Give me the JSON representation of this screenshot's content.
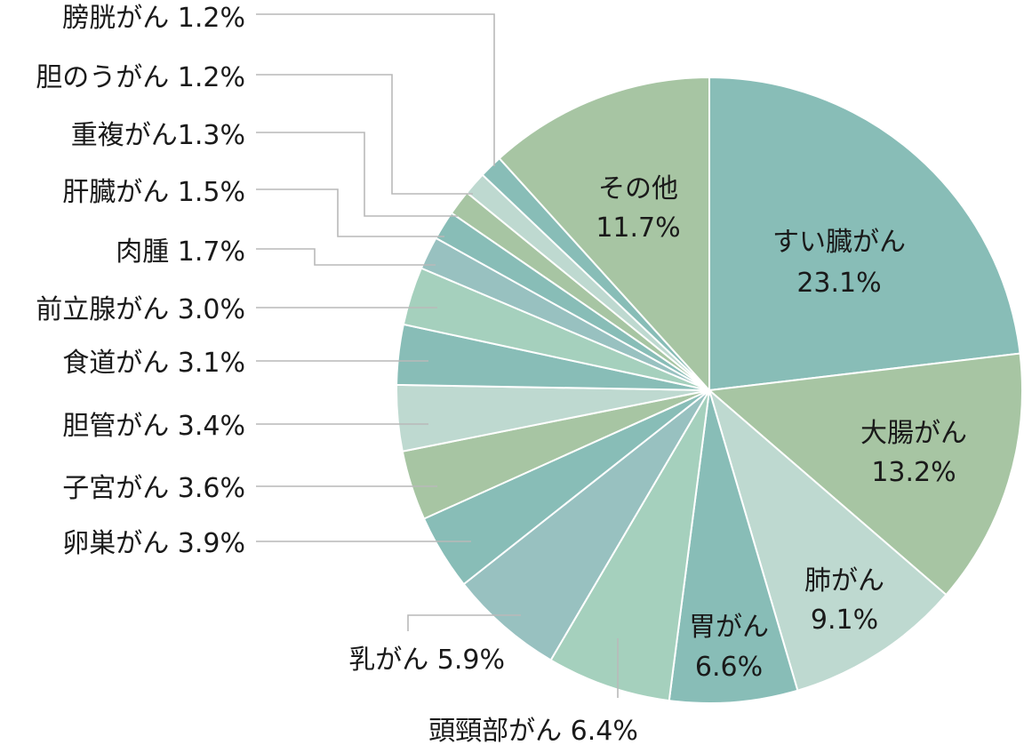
{
  "chart_data": {
    "type": "pie",
    "start": "12 o'clock",
    "direction": "clockwise",
    "slices": [
      {
        "label": "すい臓がん",
        "value": 23.1,
        "value_text": "23.1%",
        "color": "#88bdb7"
      },
      {
        "label": "大腸がん",
        "value": 13.2,
        "value_text": "13.2%",
        "color": "#a7c5a3"
      },
      {
        "label": "肺がん",
        "value": 9.1,
        "value_text": "9.1%",
        "color": "#bed9d0"
      },
      {
        "label": "胃がん",
        "value": 6.6,
        "value_text": "6.6%",
        "color": "#88bdb7"
      },
      {
        "label": "頭頸部がん",
        "value": 6.4,
        "value_text": "6.4%",
        "color": "#a5d0bd"
      },
      {
        "label": "乳がん",
        "value": 5.9,
        "value_text": "5.9%",
        "color": "#98c1c0"
      },
      {
        "label": "卵巣がん",
        "value": 3.9,
        "value_text": "3.9%",
        "color": "#88bdb7"
      },
      {
        "label": "子宮がん",
        "value": 3.6,
        "value_text": "3.6%",
        "color": "#a7c5a3"
      },
      {
        "label": "胆管がん",
        "value": 3.4,
        "value_text": "3.4%",
        "color": "#bed9d0"
      },
      {
        "label": "食道がん",
        "value": 3.1,
        "value_text": "3.1%",
        "color": "#88bdb7"
      },
      {
        "label": "前立腺がん",
        "value": 3.0,
        "value_text": "3.0%",
        "color": "#a5d0bd"
      },
      {
        "label": "肉腫",
        "value": 1.7,
        "value_text": "1.7%",
        "color": "#98c1c0"
      },
      {
        "label": "肝臓がん",
        "value": 1.5,
        "value_text": "1.5%",
        "color": "#88bdb7"
      },
      {
        "label": "重複がん",
        "value": 1.3,
        "value_text": "1.3%",
        "color": "#a7c5a3"
      },
      {
        "label": "胆のうがん",
        "value": 1.2,
        "value_text": "1.2%",
        "color": "#bed9d0"
      },
      {
        "label": "膀胱がん",
        "value": 1.2,
        "value_text": "1.2%",
        "color": "#88bdb7"
      },
      {
        "label": "その他",
        "value": 11.7,
        "value_text": "11.7%",
        "color": "#a7c5a3"
      }
    ],
    "outside_labels": [
      "膀胱がん 1.2%",
      "胆のうがん 1.2%",
      "重複がん1.3%",
      "肝臓がん 1.5%",
      "肉腫 1.7%",
      "前立腺がん 3.0%",
      "食道がん 3.1%",
      "胆管がん 3.4%",
      "子宮がん 3.6%",
      "卵巣がん 3.9%",
      "乳がん 5.9%",
      "頭頸部がん 6.4%"
    ]
  }
}
